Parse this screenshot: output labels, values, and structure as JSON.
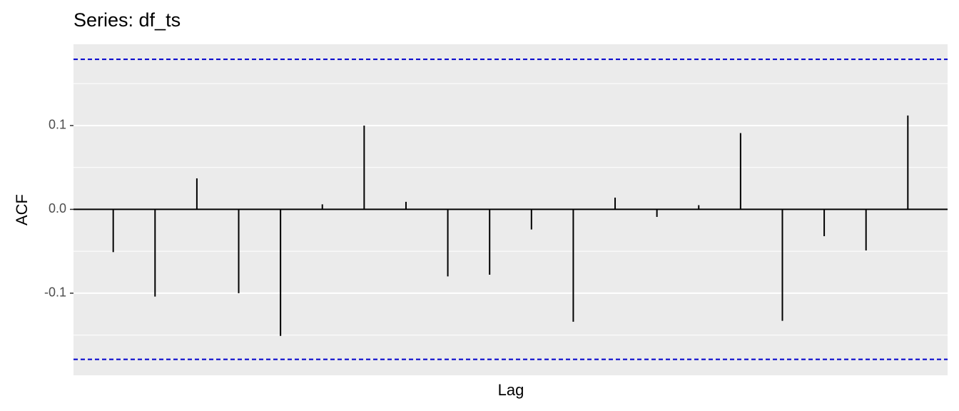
{
  "chart_data": {
    "type": "acf",
    "title": "Series: df_ts",
    "xlabel": "Lag",
    "ylabel": "ACF",
    "x": [
      1,
      2,
      3,
      4,
      5,
      6,
      7,
      8,
      9,
      10,
      11,
      12,
      13,
      14,
      15,
      16,
      17,
      18,
      19,
      20
    ],
    "values": [
      -0.051,
      -0.104,
      0.037,
      -0.1,
      -0.151,
      0.006,
      0.1,
      0.009,
      -0.08,
      -0.078,
      -0.024,
      -0.134,
      0.014,
      -0.009,
      0.005,
      0.091,
      -0.133,
      -0.032,
      -0.049,
      0.112
    ],
    "color": "#000000",
    "xlim": [
      0.05,
      20.95
    ],
    "ylim": [
      -0.198,
      0.197
    ],
    "yticks": [
      -0.1,
      {
        "value": 0,
        "label": "0.0"
      },
      0.1
    ],
    "y_minor_ticks": [
      -0.15,
      -0.05,
      0.05,
      0.15
    ],
    "conf_limits": [
      -0.179,
      0.179
    ],
    "conf_color": "#0000cc",
    "grid": true
  }
}
